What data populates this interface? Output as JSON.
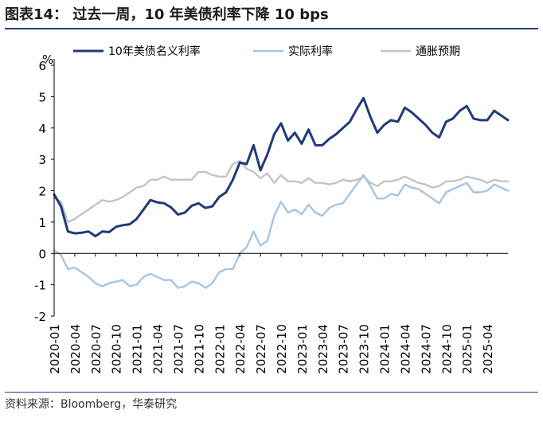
{
  "header": {
    "title": "图表14：  过去一周，10 年美债利率下降 10 bps"
  },
  "footer": {
    "source": "资料来源：Bloomberg，华泰研究"
  },
  "colors": {
    "rule": "#2a3d7c"
  },
  "chart_data": {
    "type": "line",
    "title": "",
    "xlabel": "",
    "ylabel": "%",
    "ylim": [
      -2,
      6
    ],
    "yticks": [
      "6",
      "5",
      "4",
      "3",
      "2",
      "1",
      "0",
      "-1",
      "-2"
    ],
    "grid": false,
    "legend_position": "top",
    "x_tick_labels": [
      "2020-01",
      "2020-04",
      "2020-07",
      "2020-10",
      "2021-01",
      "2021-04",
      "2021-07",
      "2021-10",
      "2022-01",
      "2022-04",
      "2022-07",
      "2022-10",
      "2023-01",
      "2023-04",
      "2023-07",
      "2023-10",
      "2024-01",
      "2024-04",
      "2024-07",
      "2024-10",
      "2025-01",
      "2025-04"
    ],
    "x_end": "2025-07",
    "series": [
      {
        "name": "10年美债名义利率",
        "color": "#1f3a7a",
        "points": [
          [
            "2020-01",
            1.88
          ],
          [
            "2020-02",
            1.5
          ],
          [
            "2020-03",
            0.7
          ],
          [
            "2020-04",
            0.64
          ],
          [
            "2020-05",
            0.66
          ],
          [
            "2020-06",
            0.7
          ],
          [
            "2020-07",
            0.55
          ],
          [
            "2020-08",
            0.7
          ],
          [
            "2020-09",
            0.68
          ],
          [
            "2020-10",
            0.85
          ],
          [
            "2020-11",
            0.9
          ],
          [
            "2020-12",
            0.93
          ],
          [
            "2021-01",
            1.1
          ],
          [
            "2021-02",
            1.4
          ],
          [
            "2021-03",
            1.7
          ],
          [
            "2021-04",
            1.63
          ],
          [
            "2021-05",
            1.6
          ],
          [
            "2021-06",
            1.47
          ],
          [
            "2021-07",
            1.24
          ],
          [
            "2021-08",
            1.3
          ],
          [
            "2021-09",
            1.52
          ],
          [
            "2021-10",
            1.6
          ],
          [
            "2021-11",
            1.45
          ],
          [
            "2021-12",
            1.5
          ],
          [
            "2022-01",
            1.8
          ],
          [
            "2022-02",
            1.95
          ],
          [
            "2022-03",
            2.35
          ],
          [
            "2022-04",
            2.9
          ],
          [
            "2022-05",
            2.85
          ],
          [
            "2022-06",
            3.45
          ],
          [
            "2022-07",
            2.65
          ],
          [
            "2022-08",
            3.15
          ],
          [
            "2022-09",
            3.8
          ],
          [
            "2022-10",
            4.15
          ],
          [
            "2022-11",
            3.6
          ],
          [
            "2022-12",
            3.85
          ],
          [
            "2023-01",
            3.5
          ],
          [
            "2023-02",
            3.95
          ],
          [
            "2023-03",
            3.45
          ],
          [
            "2023-04",
            3.45
          ],
          [
            "2023-05",
            3.65
          ],
          [
            "2023-06",
            3.8
          ],
          [
            "2023-07",
            4.0
          ],
          [
            "2023-08",
            4.2
          ],
          [
            "2023-09",
            4.6
          ],
          [
            "2023-10",
            4.95
          ],
          [
            "2023-11",
            4.35
          ],
          [
            "2023-12",
            3.85
          ],
          [
            "2024-01",
            4.1
          ],
          [
            "2024-02",
            4.25
          ],
          [
            "2024-03",
            4.2
          ],
          [
            "2024-04",
            4.65
          ],
          [
            "2024-05",
            4.5
          ],
          [
            "2024-06",
            4.3
          ],
          [
            "2024-07",
            4.1
          ],
          [
            "2024-08",
            3.85
          ],
          [
            "2024-09",
            3.7
          ],
          [
            "2024-10",
            4.2
          ],
          [
            "2024-11",
            4.3
          ],
          [
            "2024-12",
            4.55
          ],
          [
            "2025-01",
            4.7
          ],
          [
            "2025-02",
            4.3
          ],
          [
            "2025-03",
            4.25
          ],
          [
            "2025-04",
            4.25
          ],
          [
            "2025-05",
            4.55
          ],
          [
            "2025-06",
            4.4
          ],
          [
            "2025-07",
            4.25
          ]
        ]
      },
      {
        "name": "实际利率",
        "color": "#a9c4e2",
        "points": [
          [
            "2020-01",
            0.1
          ],
          [
            "2020-02",
            -0.05
          ],
          [
            "2020-03",
            -0.5
          ],
          [
            "2020-04",
            -0.45
          ],
          [
            "2020-05",
            -0.6
          ],
          [
            "2020-06",
            -0.75
          ],
          [
            "2020-07",
            -0.95
          ],
          [
            "2020-08",
            -1.05
          ],
          [
            "2020-09",
            -0.95
          ],
          [
            "2020-10",
            -0.9
          ],
          [
            "2020-11",
            -0.85
          ],
          [
            "2020-12",
            -1.05
          ],
          [
            "2021-01",
            -1.0
          ],
          [
            "2021-02",
            -0.75
          ],
          [
            "2021-03",
            -0.65
          ],
          [
            "2021-04",
            -0.75
          ],
          [
            "2021-05",
            -0.85
          ],
          [
            "2021-06",
            -0.85
          ],
          [
            "2021-07",
            -1.1
          ],
          [
            "2021-08",
            -1.05
          ],
          [
            "2021-09",
            -0.9
          ],
          [
            "2021-10",
            -0.95
          ],
          [
            "2021-11",
            -1.1
          ],
          [
            "2021-12",
            -0.95
          ],
          [
            "2022-01",
            -0.6
          ],
          [
            "2022-02",
            -0.5
          ],
          [
            "2022-03",
            -0.5
          ],
          [
            "2022-04",
            0.0
          ],
          [
            "2022-05",
            0.2
          ],
          [
            "2022-06",
            0.7
          ],
          [
            "2022-07",
            0.25
          ],
          [
            "2022-08",
            0.4
          ],
          [
            "2022-09",
            1.2
          ],
          [
            "2022-10",
            1.65
          ],
          [
            "2022-11",
            1.3
          ],
          [
            "2022-12",
            1.4
          ],
          [
            "2023-01",
            1.25
          ],
          [
            "2023-02",
            1.55
          ],
          [
            "2023-03",
            1.3
          ],
          [
            "2023-04",
            1.2
          ],
          [
            "2023-05",
            1.45
          ],
          [
            "2023-06",
            1.55
          ],
          [
            "2023-07",
            1.6
          ],
          [
            "2023-08",
            1.9
          ],
          [
            "2023-09",
            2.2
          ],
          [
            "2023-10",
            2.5
          ],
          [
            "2023-11",
            2.15
          ],
          [
            "2023-12",
            1.75
          ],
          [
            "2024-01",
            1.75
          ],
          [
            "2024-02",
            1.9
          ],
          [
            "2024-03",
            1.85
          ],
          [
            "2024-04",
            2.2
          ],
          [
            "2024-05",
            2.1
          ],
          [
            "2024-06",
            2.05
          ],
          [
            "2024-07",
            1.9
          ],
          [
            "2024-08",
            1.75
          ],
          [
            "2024-09",
            1.6
          ],
          [
            "2024-10",
            1.95
          ],
          [
            "2024-11",
            2.05
          ],
          [
            "2024-12",
            2.15
          ],
          [
            "2025-01",
            2.25
          ],
          [
            "2025-02",
            1.95
          ],
          [
            "2025-03",
            1.95
          ],
          [
            "2025-04",
            2.0
          ],
          [
            "2025-05",
            2.2
          ],
          [
            "2025-06",
            2.1
          ],
          [
            "2025-07",
            2.0
          ]
        ]
      },
      {
        "name": "通胀预期",
        "color": "#c4c4c4",
        "points": [
          [
            "2020-01",
            1.78
          ],
          [
            "2020-02",
            1.65
          ],
          [
            "2020-03",
            1.0
          ],
          [
            "2020-04",
            1.1
          ],
          [
            "2020-05",
            1.25
          ],
          [
            "2020-06",
            1.4
          ],
          [
            "2020-07",
            1.55
          ],
          [
            "2020-08",
            1.7
          ],
          [
            "2020-09",
            1.65
          ],
          [
            "2020-10",
            1.7
          ],
          [
            "2020-11",
            1.8
          ],
          [
            "2020-12",
            1.95
          ],
          [
            "2021-01",
            2.1
          ],
          [
            "2021-02",
            2.15
          ],
          [
            "2021-03",
            2.35
          ],
          [
            "2021-04",
            2.35
          ],
          [
            "2021-05",
            2.45
          ],
          [
            "2021-06",
            2.35
          ],
          [
            "2021-07",
            2.35
          ],
          [
            "2021-08",
            2.35
          ],
          [
            "2021-09",
            2.35
          ],
          [
            "2021-10",
            2.6
          ],
          [
            "2021-11",
            2.6
          ],
          [
            "2021-12",
            2.5
          ],
          [
            "2022-01",
            2.45
          ],
          [
            "2022-02",
            2.45
          ],
          [
            "2022-03",
            2.85
          ],
          [
            "2022-04",
            2.95
          ],
          [
            "2022-05",
            2.7
          ],
          [
            "2022-06",
            2.6
          ],
          [
            "2022-07",
            2.4
          ],
          [
            "2022-08",
            2.55
          ],
          [
            "2022-09",
            2.25
          ],
          [
            "2022-10",
            2.5
          ],
          [
            "2022-11",
            2.3
          ],
          [
            "2022-12",
            2.3
          ],
          [
            "2023-01",
            2.25
          ],
          [
            "2023-02",
            2.4
          ],
          [
            "2023-03",
            2.25
          ],
          [
            "2023-04",
            2.25
          ],
          [
            "2023-05",
            2.2
          ],
          [
            "2023-06",
            2.25
          ],
          [
            "2023-07",
            2.35
          ],
          [
            "2023-08",
            2.3
          ],
          [
            "2023-09",
            2.35
          ],
          [
            "2023-10",
            2.45
          ],
          [
            "2023-11",
            2.25
          ],
          [
            "2023-12",
            2.15
          ],
          [
            "2024-01",
            2.3
          ],
          [
            "2024-02",
            2.3
          ],
          [
            "2024-03",
            2.35
          ],
          [
            "2024-04",
            2.45
          ],
          [
            "2024-05",
            2.35
          ],
          [
            "2024-06",
            2.25
          ],
          [
            "2024-07",
            2.2
          ],
          [
            "2024-08",
            2.1
          ],
          [
            "2024-09",
            2.15
          ],
          [
            "2024-10",
            2.3
          ],
          [
            "2024-11",
            2.3
          ],
          [
            "2024-12",
            2.35
          ],
          [
            "2025-01",
            2.45
          ],
          [
            "2025-02",
            2.4
          ],
          [
            "2025-03",
            2.35
          ],
          [
            "2025-04",
            2.25
          ],
          [
            "2025-05",
            2.35
          ],
          [
            "2025-06",
            2.3
          ],
          [
            "2025-07",
            2.3
          ]
        ]
      }
    ]
  }
}
